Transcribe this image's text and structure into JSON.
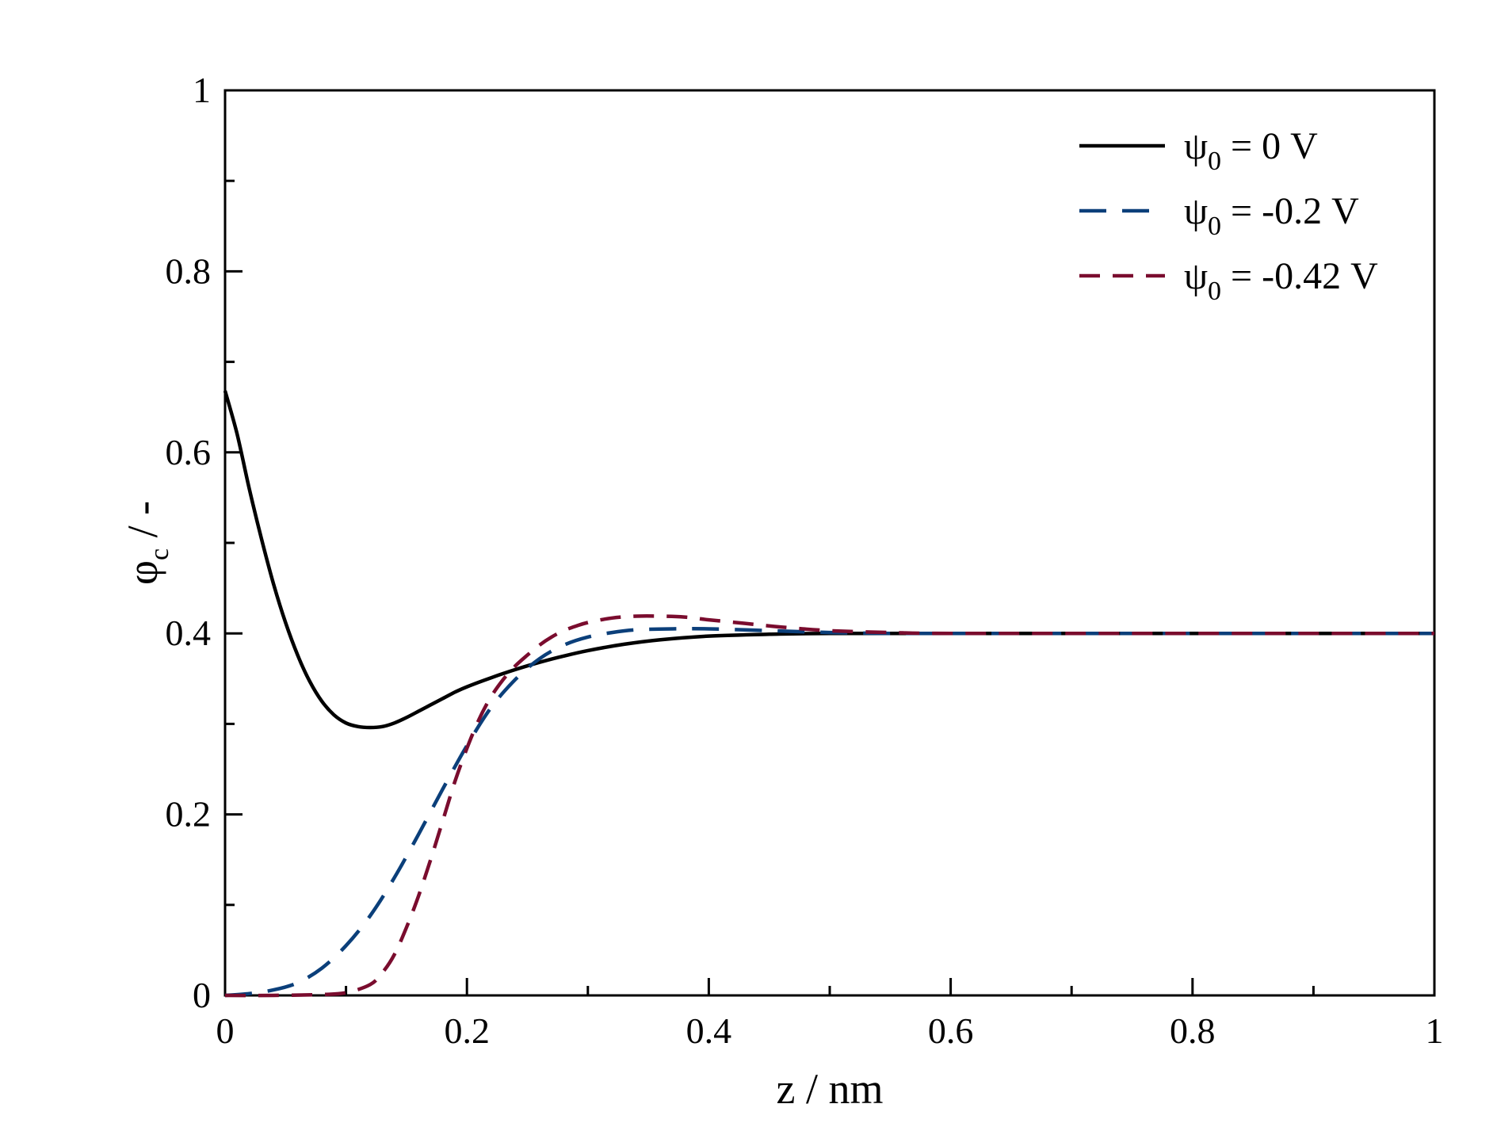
{
  "chart_data": {
    "type": "line",
    "title": "",
    "xlabel": "z / nm",
    "ylabel_main": "φ",
    "ylabel_sub": "c",
    "ylabel_suffix": " / -",
    "xlim": [
      0,
      1
    ],
    "ylim": [
      0,
      1
    ],
    "x_ticks": [
      {
        "value": 0,
        "label": "0"
      },
      {
        "value": 0.2,
        "label": "0.2"
      },
      {
        "value": 0.4,
        "label": "0.4"
      },
      {
        "value": 0.6,
        "label": "0.6"
      },
      {
        "value": 0.8,
        "label": "0.8"
      },
      {
        "value": 1,
        "label": "1"
      }
    ],
    "x_minor_ticks": [
      0.1,
      0.3,
      0.5,
      0.7,
      0.9
    ],
    "y_ticks": [
      {
        "value": 0,
        "label": "0"
      },
      {
        "value": 0.2,
        "label": "0.2"
      },
      {
        "value": 0.4,
        "label": "0.4"
      },
      {
        "value": 0.6,
        "label": "0.6"
      },
      {
        "value": 0.8,
        "label": "0.8"
      },
      {
        "value": 1,
        "label": "1"
      }
    ],
    "y_minor_ticks": [
      0.1,
      0.3,
      0.5,
      0.7,
      0.9
    ],
    "grid": false,
    "legend_position": "top-right",
    "series": [
      {
        "legend_symbol": "ψ",
        "legend_sub": "0",
        "legend_text": " = 0 V",
        "color": "#000000",
        "dash": "solid",
        "points": [
          [
            0,
            0.668
          ],
          [
            0.01,
            0.62
          ],
          [
            0.02,
            0.56
          ],
          [
            0.03,
            0.505
          ],
          [
            0.04,
            0.455
          ],
          [
            0.05,
            0.412
          ],
          [
            0.06,
            0.376
          ],
          [
            0.07,
            0.347
          ],
          [
            0.08,
            0.325
          ],
          [
            0.09,
            0.31
          ],
          [
            0.1,
            0.301
          ],
          [
            0.11,
            0.297
          ],
          [
            0.12,
            0.296
          ],
          [
            0.13,
            0.297
          ],
          [
            0.14,
            0.301
          ],
          [
            0.15,
            0.307
          ],
          [
            0.16,
            0.314
          ],
          [
            0.17,
            0.321
          ],
          [
            0.18,
            0.328
          ],
          [
            0.19,
            0.335
          ],
          [
            0.2,
            0.341
          ],
          [
            0.22,
            0.351
          ],
          [
            0.24,
            0.36
          ],
          [
            0.26,
            0.368
          ],
          [
            0.28,
            0.375
          ],
          [
            0.3,
            0.381
          ],
          [
            0.33,
            0.388
          ],
          [
            0.36,
            0.393
          ],
          [
            0.4,
            0.397
          ],
          [
            0.45,
            0.399
          ],
          [
            0.5,
            0.4
          ],
          [
            0.6,
            0.4
          ],
          [
            0.8,
            0.4
          ],
          [
            1,
            0.4
          ]
        ]
      },
      {
        "legend_symbol": "ψ",
        "legend_sub": "0",
        "legend_text": " = -0.2 V",
        "color": "#0b3f7a",
        "dash": "long",
        "points": [
          [
            0,
            0.0
          ],
          [
            0.02,
            0.002
          ],
          [
            0.04,
            0.006
          ],
          [
            0.06,
            0.014
          ],
          [
            0.08,
            0.03
          ],
          [
            0.1,
            0.055
          ],
          [
            0.12,
            0.088
          ],
          [
            0.14,
            0.13
          ],
          [
            0.16,
            0.178
          ],
          [
            0.18,
            0.228
          ],
          [
            0.2,
            0.276
          ],
          [
            0.22,
            0.318
          ],
          [
            0.24,
            0.349
          ],
          [
            0.26,
            0.372
          ],
          [
            0.28,
            0.387
          ],
          [
            0.3,
            0.396
          ],
          [
            0.32,
            0.401
          ],
          [
            0.34,
            0.404
          ],
          [
            0.37,
            0.405
          ],
          [
            0.4,
            0.405
          ],
          [
            0.45,
            0.403
          ],
          [
            0.5,
            0.401
          ],
          [
            0.55,
            0.4
          ],
          [
            0.6,
            0.4
          ],
          [
            0.8,
            0.4
          ],
          [
            1,
            0.4
          ]
        ]
      },
      {
        "legend_symbol": "ψ",
        "legend_sub": "0",
        "legend_text": " = -0.42 V",
        "color": "#7a0c2e",
        "dash": "short",
        "points": [
          [
            0,
            0.0
          ],
          [
            0.04,
            0.0
          ],
          [
            0.08,
            0.001
          ],
          [
            0.1,
            0.003
          ],
          [
            0.12,
            0.012
          ],
          [
            0.13,
            0.025
          ],
          [
            0.14,
            0.045
          ],
          [
            0.15,
            0.075
          ],
          [
            0.16,
            0.11
          ],
          [
            0.17,
            0.15
          ],
          [
            0.18,
            0.193
          ],
          [
            0.19,
            0.236
          ],
          [
            0.2,
            0.273
          ],
          [
            0.21,
            0.305
          ],
          [
            0.22,
            0.33
          ],
          [
            0.23,
            0.349
          ],
          [
            0.24,
            0.364
          ],
          [
            0.25,
            0.376
          ],
          [
            0.26,
            0.387
          ],
          [
            0.27,
            0.396
          ],
          [
            0.28,
            0.403
          ],
          [
            0.29,
            0.408
          ],
          [
            0.3,
            0.412
          ],
          [
            0.32,
            0.417
          ],
          [
            0.34,
            0.419
          ],
          [
            0.36,
            0.419
          ],
          [
            0.38,
            0.418
          ],
          [
            0.4,
            0.415
          ],
          [
            0.43,
            0.411
          ],
          [
            0.46,
            0.407
          ],
          [
            0.5,
            0.403
          ],
          [
            0.55,
            0.401
          ],
          [
            0.6,
            0.4
          ],
          [
            0.8,
            0.4
          ],
          [
            1,
            0.4
          ]
        ]
      }
    ]
  }
}
